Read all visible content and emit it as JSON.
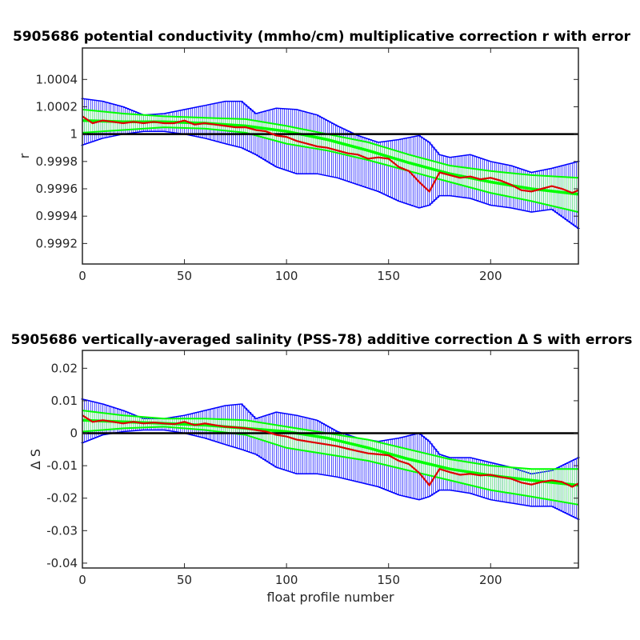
{
  "chart_data": [
    {
      "type": "line",
      "title": "5905686 potential conductivity (mmho/cm) multiplicative correction r with error",
      "xlabel": "",
      "ylabel": "r",
      "xlim": [
        0,
        243
      ],
      "ylim": [
        0.99905,
        1.00063
      ],
      "xticks": [
        0,
        50,
        100,
        150,
        200
      ],
      "xtick_labels": [
        "0",
        "50",
        "100",
        "150",
        "200"
      ],
      "yticks": [
        0.9992,
        0.9994,
        0.9996,
        0.9998,
        1,
        1.0002,
        1.0004
      ],
      "ytick_labels": [
        "0.9992",
        "0.9994",
        "0.9996",
        "0.9998",
        "1",
        "1.0002",
        "1.0004"
      ],
      "reference_line": 1,
      "grid": false,
      "colors": {
        "error_bars": "#0000ff",
        "fit": "#00ff00",
        "fit_error": "#66ff66",
        "correction": "#dd0000",
        "reference": "#000000"
      },
      "series": [
        {
          "role": "correction",
          "x": [
            0,
            5,
            10,
            15,
            20,
            25,
            30,
            35,
            40,
            45,
            50,
            55,
            60,
            65,
            70,
            75,
            80,
            85,
            90,
            95,
            100,
            105,
            110,
            115,
            120,
            125,
            130,
            135,
            140,
            145,
            150,
            155,
            160,
            165,
            170,
            175,
            180,
            185,
            190,
            195,
            200,
            205,
            210,
            215,
            220,
            225,
            230,
            235,
            240,
            243
          ],
          "y": [
            1.00013,
            1.00008,
            1.0001,
            1.00009,
            1.00008,
            1.00009,
            1.00008,
            1.00009,
            1.00008,
            1.00008,
            1.0001,
            1.00007,
            1.00008,
            1.00007,
            1.00006,
            1.00005,
            1.00005,
            1.00003,
            1.00002,
            0.99999,
            0.99998,
            0.99995,
            0.99993,
            0.99991,
            0.9999,
            0.99988,
            0.99986,
            0.99985,
            0.99982,
            0.99983,
            0.99982,
            0.99976,
            0.99973,
            0.99965,
            0.99958,
            0.99972,
            0.9997,
            0.99968,
            0.99969,
            0.99967,
            0.99968,
            0.99966,
            0.99963,
            0.99959,
            0.99958,
            0.9996,
            0.99962,
            0.9996,
            0.99957,
            0.99959
          ]
        },
        {
          "role": "fit",
          "x": [
            0,
            20,
            40,
            60,
            80,
            100,
            120,
            140,
            160,
            180,
            200,
            220,
            243
          ],
          "y": [
            1.0001,
            1.00009,
            1.00009,
            1.00008,
            1.00006,
            1.00002,
            0.99996,
            0.99988,
            0.99979,
            0.99971,
            0.99965,
            0.9996,
            0.99956
          ]
        },
        {
          "role": "fit_upper",
          "x": [
            0,
            20,
            40,
            60,
            80,
            100,
            120,
            140,
            160,
            180,
            200,
            220,
            243
          ],
          "y": [
            1.00018,
            1.00015,
            1.00013,
            1.00012,
            1.00011,
            1.00006,
            1.0,
            0.99994,
            0.99985,
            0.99977,
            0.99973,
            0.9997,
            0.99968
          ]
        },
        {
          "role": "fit_lower",
          "x": [
            0,
            20,
            40,
            60,
            80,
            100,
            120,
            140,
            160,
            180,
            200,
            220,
            243
          ],
          "y": [
            1.00001,
            1.00003,
            1.00005,
            1.00004,
            1.00001,
            0.99993,
            0.99988,
            0.99981,
            0.99973,
            0.99965,
            0.99957,
            0.99951,
            0.99943
          ]
        },
        {
          "role": "error_upper",
          "x": [
            0,
            10,
            20,
            30,
            40,
            50,
            60,
            70,
            78,
            85,
            95,
            105,
            115,
            125,
            135,
            145,
            155,
            165,
            170,
            175,
            180,
            190,
            200,
            210,
            220,
            230,
            243
          ],
          "y": [
            1.00026,
            1.00024,
            1.0002,
            1.00014,
            1.00015,
            1.00018,
            1.00021,
            1.00024,
            1.00024,
            1.00015,
            1.00019,
            1.00018,
            1.00014,
            1.00006,
            0.99999,
            0.99994,
            0.99996,
            0.99999,
            0.99994,
            0.99985,
            0.99983,
            0.99985,
            0.9998,
            0.99977,
            0.99972,
            0.99975,
            0.9998
          ]
        },
        {
          "role": "error_lower",
          "x": [
            0,
            10,
            20,
            30,
            40,
            50,
            60,
            70,
            78,
            85,
            95,
            105,
            115,
            125,
            135,
            145,
            155,
            165,
            170,
            175,
            180,
            190,
            200,
            210,
            220,
            230,
            243
          ],
          "y": [
            0.99992,
            0.99997,
            1.0,
            1.00002,
            1.00002,
            1.0,
            0.99997,
            0.99993,
            0.9999,
            0.99985,
            0.99976,
            0.99971,
            0.99971,
            0.99968,
            0.99963,
            0.99958,
            0.99951,
            0.99946,
            0.99948,
            0.99955,
            0.99955,
            0.99953,
            0.99948,
            0.99946,
            0.99943,
            0.99945,
            0.99931
          ]
        }
      ]
    },
    {
      "type": "line",
      "title": "5905686 vertically-averaged salinity (PSS-78) additive correction Δ S with errors",
      "xlabel": "float profile number",
      "ylabel": "Δ S",
      "xlim": [
        0,
        243
      ],
      "ylim": [
        -0.0415,
        0.0255
      ],
      "xticks": [
        0,
        50,
        100,
        150,
        200
      ],
      "xtick_labels": [
        "0",
        "50",
        "100",
        "150",
        "200"
      ],
      "yticks": [
        -0.04,
        -0.03,
        -0.02,
        -0.01,
        0,
        0.01,
        0.02
      ],
      "ytick_labels": [
        "-0.04",
        "-0.03",
        "-0.02",
        "-0.01",
        "0",
        "0.01",
        "0.02"
      ],
      "reference_line": 0,
      "grid": false,
      "colors": {
        "error_bars": "#0000ff",
        "fit": "#00ff00",
        "fit_error": "#66ff66",
        "correction": "#dd0000",
        "reference": "#000000"
      },
      "series": [
        {
          "role": "correction",
          "x": [
            0,
            5,
            10,
            15,
            20,
            25,
            30,
            35,
            40,
            45,
            50,
            55,
            60,
            65,
            70,
            75,
            80,
            85,
            90,
            95,
            100,
            105,
            110,
            115,
            120,
            125,
            130,
            135,
            140,
            145,
            150,
            155,
            160,
            165,
            170,
            175,
            180,
            185,
            190,
            195,
            200,
            205,
            210,
            215,
            220,
            225,
            230,
            235,
            240,
            243
          ],
          "y": [
            0.0055,
            0.0035,
            0.004,
            0.0035,
            0.003,
            0.0035,
            0.003,
            0.0033,
            0.003,
            0.0028,
            0.0035,
            0.0025,
            0.003,
            0.0025,
            0.002,
            0.0018,
            0.0015,
            0.001,
            0.0005,
            -0.0005,
            -0.001,
            -0.002,
            -0.0025,
            -0.003,
            -0.0035,
            -0.004,
            -0.0048,
            -0.0055,
            -0.0062,
            -0.0065,
            -0.0068,
            -0.0085,
            -0.0095,
            -0.0122,
            -0.016,
            -0.011,
            -0.012,
            -0.0128,
            -0.0125,
            -0.013,
            -0.0128,
            -0.0135,
            -0.014,
            -0.0152,
            -0.0158,
            -0.015,
            -0.0145,
            -0.015,
            -0.0165,
            -0.0155
          ]
        },
        {
          "role": "fit",
          "x": [
            0,
            20,
            40,
            60,
            80,
            100,
            120,
            140,
            160,
            180,
            200,
            220,
            243
          ],
          "y": [
            0.004,
            0.0035,
            0.003,
            0.0025,
            0.0015,
            0.0005,
            -0.0015,
            -0.0045,
            -0.008,
            -0.011,
            -0.013,
            -0.0145,
            -0.016
          ]
        },
        {
          "role": "fit_upper",
          "x": [
            0,
            20,
            40,
            60,
            80,
            100,
            120,
            140,
            160,
            180,
            200,
            220,
            243
          ],
          "y": [
            0.007,
            0.0055,
            0.0045,
            0.0045,
            0.004,
            0.002,
            0.0,
            -0.002,
            -0.005,
            -0.008,
            -0.01,
            -0.011,
            -0.011
          ]
        },
        {
          "role": "fit_lower",
          "x": [
            0,
            20,
            40,
            60,
            80,
            100,
            120,
            140,
            160,
            180,
            200,
            220,
            243
          ],
          "y": [
            0.0005,
            0.0015,
            0.002,
            0.001,
            -0.0005,
            -0.0045,
            -0.0065,
            -0.0085,
            -0.0115,
            -0.0145,
            -0.0175,
            -0.0195,
            -0.022
          ]
        },
        {
          "role": "error_upper",
          "x": [
            0,
            10,
            20,
            30,
            40,
            50,
            60,
            70,
            78,
            85,
            95,
            105,
            115,
            125,
            135,
            145,
            155,
            165,
            170,
            175,
            180,
            190,
            200,
            210,
            220,
            230,
            243
          ],
          "y": [
            0.0105,
            0.009,
            0.007,
            0.0045,
            0.0045,
            0.0055,
            0.007,
            0.0085,
            0.009,
            0.0045,
            0.0065,
            0.0055,
            0.004,
            0.0005,
            -0.0015,
            -0.0025,
            -0.0015,
            0.0,
            -0.0025,
            -0.0065,
            -0.0075,
            -0.0075,
            -0.009,
            -0.0105,
            -0.0125,
            -0.0115,
            -0.0075
          ]
        },
        {
          "role": "error_lower",
          "x": [
            0,
            10,
            20,
            30,
            40,
            50,
            60,
            70,
            78,
            85,
            95,
            105,
            115,
            125,
            135,
            145,
            155,
            165,
            170,
            175,
            180,
            190,
            200,
            210,
            220,
            230,
            243
          ],
          "y": [
            -0.003,
            -0.0005,
            0.0005,
            0.001,
            0.001,
            0.0,
            -0.0015,
            -0.0035,
            -0.005,
            -0.0065,
            -0.0105,
            -0.0125,
            -0.0125,
            -0.0135,
            -0.015,
            -0.0165,
            -0.019,
            -0.0205,
            -0.0195,
            -0.0175,
            -0.0175,
            -0.0185,
            -0.0205,
            -0.0215,
            -0.0225,
            -0.0225,
            -0.0265
          ]
        }
      ]
    }
  ]
}
